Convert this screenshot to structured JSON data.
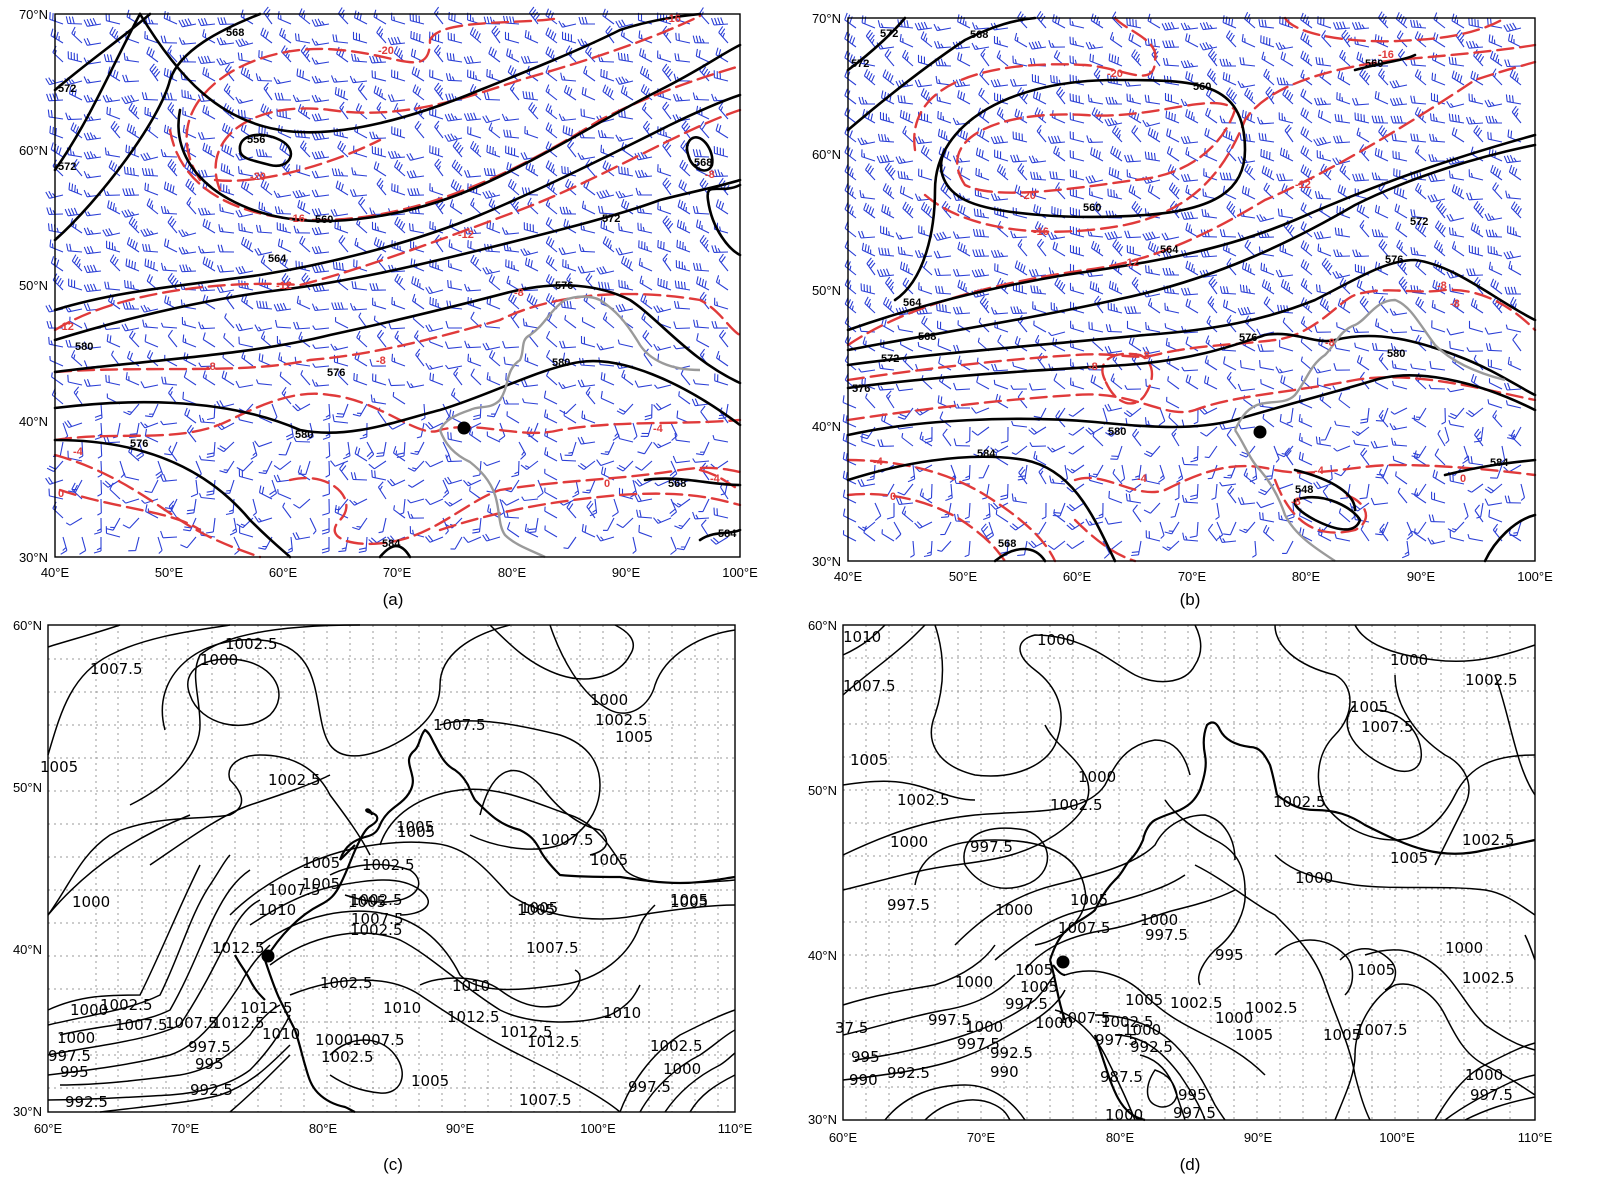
{
  "panels": [
    {
      "id": "a",
      "caption": "(a)",
      "xticks": [
        "40°E",
        "50°E",
        "60°E",
        "70°E",
        "80°E",
        "90°E",
        "100°E"
      ],
      "yticks": [
        "30°N",
        "40°N",
        "50°N",
        "60°N",
        "70°N"
      ],
      "height_labels": [
        "556",
        "568",
        "560",
        "564",
        "572",
        "576",
        "580",
        "584",
        "576",
        "572",
        "568",
        "584",
        "584",
        "584",
        "568"
      ],
      "temp_labels": [
        "-20",
        "-16",
        "-16",
        "-12",
        "-12",
        "-12",
        "-8",
        "-8",
        "-8",
        "-8",
        "-4",
        "-4",
        "-4",
        "0",
        "-20"
      ],
      "legend": {
        "height_color": "#000000",
        "temperature_color": "#e03a3a",
        "wind_color": "#2b3fd6"
      }
    },
    {
      "id": "b",
      "caption": "(b)",
      "xticks": [
        "40°E",
        "50°E",
        "60°E",
        "70°E",
        "80°E",
        "90°E",
        "100°E"
      ],
      "yticks": [
        "30°N",
        "40°N",
        "50°N",
        "60°N",
        "70°N"
      ],
      "height_labels": [
        "560",
        "560",
        "564",
        "568",
        "572",
        "576",
        "576",
        "580",
        "580",
        "584",
        "584",
        "564",
        "568",
        "572",
        "576",
        "548",
        "568",
        "560"
      ],
      "temp_labels": [
        "-20",
        "-20",
        "-16",
        "-16",
        "-12",
        "-12",
        "-8",
        "-8",
        "-8",
        "-4",
        "-4",
        "-4",
        "0",
        "0",
        "-8",
        "-20",
        "-4"
      ]
    },
    {
      "id": "c",
      "caption": "(c)",
      "xticks": [
        "60°E",
        "70°E",
        "80°E",
        "90°E",
        "100°E",
        "110°E"
      ],
      "yticks": [
        "30°N",
        "40°N",
        "50°N",
        "60°N"
      ],
      "slp_labels": [
        "1007.5",
        "1002.5",
        "1000",
        "1000",
        "1002.5",
        "1005",
        "1007.5",
        "1002.5",
        "1005",
        "1005",
        "1007.5",
        "1005",
        "1005",
        "1002.5",
        "1007.5",
        "1005",
        "1002.5",
        "1005",
        "1000",
        "1010",
        "1012.5",
        "1007.5",
        "1005",
        "1002.5",
        "1007.5",
        "1010",
        "1012.5",
        "1010",
        "1012.5",
        "1012.5",
        "1010",
        "1002.5",
        "1000",
        "1002.5",
        "1007.5",
        "1007.5",
        "1010",
        "1012.5",
        "1000",
        "997.5",
        "995",
        "992.5",
        "997.5",
        "995",
        "992.5",
        "1007.5",
        "1005",
        "1000",
        "1002.5",
        "1010",
        "1002.5",
        "1007.5",
        "1000",
        "997.5",
        "1000",
        "1005",
        "1005"
      ]
    },
    {
      "id": "d",
      "caption": "(d)",
      "xticks": [
        "60°E",
        "70°E",
        "80°E",
        "90°E",
        "100°E",
        "110°E"
      ],
      "yticks": [
        "30°N",
        "40°N",
        "50°N",
        "60°N"
      ],
      "slp_labels": [
        "1010",
        "1000",
        "1000",
        "1007.5",
        "1005",
        "1007.5",
        "1002.5",
        "1005",
        "1000",
        "1002.5",
        "1002.5",
        "1000",
        "997.5",
        "1002.5",
        "1002.5",
        "1005",
        "1000",
        "997.5",
        "1000",
        "1005",
        "1000",
        "997.5",
        "995",
        "1000",
        "1007.5",
        "1005",
        "1005",
        "1002.5",
        "1002.5",
        "1005",
        "1007.5",
        "997.5",
        "1000",
        "997.5",
        "1002.5",
        "1007.5",
        "1000",
        "1005",
        "990",
        "992.5",
        "995",
        "992.5",
        "990",
        "997.5",
        "997.5",
        "987.5",
        "995",
        "997.5",
        "1000",
        "1000",
        "1002.5",
        "1000",
        "997.5",
        "1000",
        "1007.5",
        "1002.5",
        "1005",
        "1007.5",
        "1002.5",
        "1000",
        "1005",
        "1002.5",
        "997.5",
        "37.5"
      ]
    }
  ]
}
